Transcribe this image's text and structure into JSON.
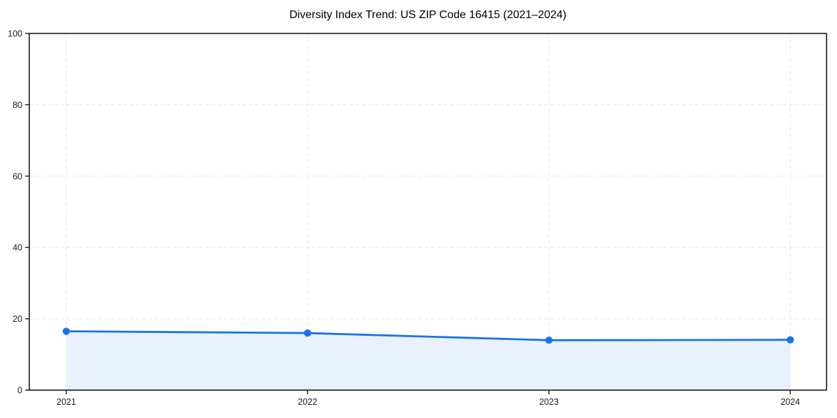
{
  "chart_data": {
    "type": "line",
    "title": "Diversity Index Trend: US ZIP Code 16415 (2021–2024)",
    "categories": [
      "2021",
      "2022",
      "2023",
      "2024"
    ],
    "series": [
      {
        "name": "Diversity Index",
        "values": [
          16.5,
          16.0,
          14.0,
          14.1
        ]
      }
    ],
    "xlabel": "",
    "ylabel": "",
    "ylim": [
      0,
      100
    ],
    "yticks": [
      0,
      20,
      40,
      60,
      80,
      100
    ],
    "grid": "dashed",
    "legend": "none",
    "area_fill": true,
    "marker": "circle",
    "colors": {
      "line": "#1a73e8",
      "marker": "#1a73e8",
      "fill": "#e8f1fd",
      "grid": "#e7e7e7",
      "spine": "#1a1a1a",
      "text": "#1a1a1a",
      "background": "#ffffff"
    }
  }
}
